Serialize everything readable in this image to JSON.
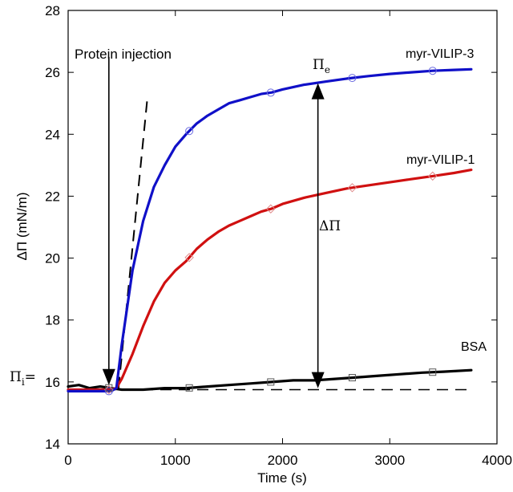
{
  "chart_data": {
    "type": "line",
    "xlabel": "Time (s)",
    "ylabel": "ΔΠ (mN/m)",
    "xlim": [
      0,
      4000
    ],
    "ylim": [
      14,
      28
    ],
    "xticks": [
      0,
      1000,
      2000,
      3000,
      4000
    ],
    "yticks": [
      14,
      16,
      18,
      20,
      22,
      24,
      26,
      28
    ],
    "grid": false,
    "legend": "none (series labelled directly on the curves)",
    "series": [
      {
        "name": "myr-VILIP-3",
        "color": "#1010c8",
        "marker": "circle",
        "marker_x": [
          380,
          1130,
          1890,
          2650,
          3400
        ],
        "x": [
          0,
          200,
          400,
          450,
          500,
          600,
          700,
          800,
          900,
          1000,
          1100,
          1200,
          1300,
          1400,
          1500,
          1600,
          1700,
          1800,
          1900,
          2000,
          2200,
          2400,
          2600,
          2800,
          3000,
          3200,
          3400,
          3600,
          3760
        ],
        "y": [
          15.7,
          15.7,
          15.7,
          15.8,
          17.2,
          19.6,
          21.2,
          22.3,
          23.0,
          23.6,
          24.0,
          24.35,
          24.6,
          24.8,
          25.0,
          25.1,
          25.2,
          25.3,
          25.35,
          25.45,
          25.6,
          25.7,
          25.8,
          25.88,
          25.95,
          26.0,
          26.05,
          26.08,
          26.1
        ]
      },
      {
        "name": "myr-VILIP-1",
        "color": "#d01010",
        "marker": "diamond",
        "marker_x": [
          380,
          1130,
          1890,
          2650,
          3400
        ],
        "x": [
          0,
          200,
          400,
          450,
          500,
          600,
          700,
          800,
          900,
          1000,
          1100,
          1200,
          1300,
          1400,
          1500,
          1600,
          1700,
          1800,
          1900,
          2000,
          2200,
          2400,
          2600,
          2800,
          3000,
          3200,
          3400,
          3600,
          3760
        ],
        "y": [
          15.75,
          15.75,
          15.75,
          15.8,
          16.1,
          16.9,
          17.8,
          18.6,
          19.2,
          19.6,
          19.9,
          20.3,
          20.6,
          20.85,
          21.05,
          21.2,
          21.35,
          21.5,
          21.6,
          21.75,
          21.95,
          22.1,
          22.25,
          22.35,
          22.45,
          22.55,
          22.65,
          22.75,
          22.85
        ]
      },
      {
        "name": "BSA",
        "color": "#000000",
        "marker": "square",
        "marker_x": [
          380,
          1130,
          1890,
          2650,
          3400
        ],
        "x": [
          0,
          100,
          200,
          300,
          400,
          500,
          700,
          900,
          1100,
          1300,
          1500,
          1700,
          1900,
          2100,
          2300,
          2500,
          2700,
          2900,
          3100,
          3300,
          3500,
          3760
        ],
        "y": [
          15.85,
          15.9,
          15.8,
          15.85,
          15.8,
          15.75,
          15.75,
          15.8,
          15.8,
          15.85,
          15.9,
          15.95,
          16.0,
          16.05,
          16.05,
          16.1,
          16.15,
          16.2,
          16.25,
          16.3,
          16.33,
          16.38
        ]
      }
    ],
    "reference_lines": {
      "baseline": {
        "x": [
          0,
          3760
        ],
        "y": 15.75,
        "style": "dashed"
      },
      "initial_slope": {
        "x": [
          470,
          740
        ],
        "y": [
          15.8,
          25.2
        ],
        "style": "dashed"
      }
    },
    "annotations": {
      "injection": {
        "text": "Protein injection",
        "x": 380,
        "arrow_from_y": 26.5,
        "arrow_to_y": 15.9
      },
      "delta": {
        "symbol": "ΔΠ",
        "x": 2330,
        "y_top": 25.65,
        "y_bottom": 15.8
      },
      "pi_e": {
        "symbol": "Π",
        "subscript": "e"
      },
      "pi_i": {
        "symbol": "Π",
        "subscript": "i",
        "suffix": "="
      }
    }
  }
}
